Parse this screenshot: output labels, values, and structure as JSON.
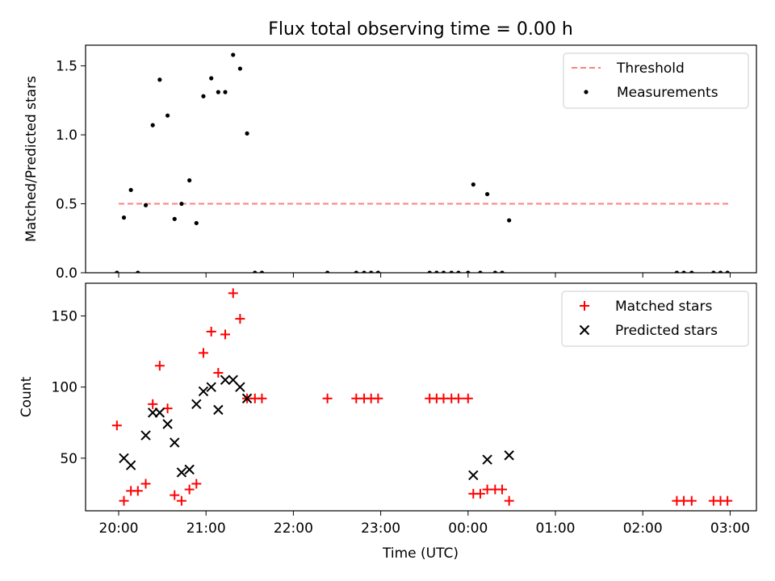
{
  "title": "Flux total observing time = 0.00 h",
  "x_axis": {
    "label": "Time (UTC)",
    "ticks": [
      "20:00",
      "21:00",
      "22:00",
      "23:00",
      "00:00",
      "01:00",
      "02:00",
      "03:00"
    ]
  },
  "colors": {
    "threshold": "#ff7f7f",
    "measurements": "#000000",
    "matched": "#ff0000",
    "predicted": "#000000"
  },
  "chart_data": [
    {
      "type": "scatter",
      "title": "Flux total observing time = 0.00 h",
      "xlabel": "",
      "ylabel": "Matched/Predicted stars",
      "x_unit": "hours after 20:00 UTC",
      "ylim": [
        0,
        1.65
      ],
      "yticks": [
        "0.0",
        "0.5",
        "1.0",
        "1.5"
      ],
      "legend": [
        "Threshold",
        "Measurements"
      ],
      "legend_position": "top-right",
      "threshold": {
        "name": "Threshold",
        "y": 0.5,
        "x": [
          0.0,
          7.0
        ]
      },
      "series": [
        {
          "name": "Measurements",
          "points": [
            [
              -0.02,
              0.0
            ],
            [
              0.06,
              0.4
            ],
            [
              0.14,
              0.6
            ],
            [
              0.22,
              0.0
            ],
            [
              0.31,
              0.49
            ],
            [
              0.39,
              1.07
            ],
            [
              0.47,
              1.4
            ],
            [
              0.56,
              1.14
            ],
            [
              0.64,
              0.39
            ],
            [
              0.72,
              0.5
            ],
            [
              0.81,
              0.67
            ],
            [
              0.89,
              0.36
            ],
            [
              0.97,
              1.28
            ],
            [
              1.06,
              1.41
            ],
            [
              1.14,
              1.31
            ],
            [
              1.22,
              1.31
            ],
            [
              1.31,
              1.58
            ],
            [
              1.39,
              1.48
            ],
            [
              1.47,
              1.01
            ],
            [
              1.56,
              0.0
            ],
            [
              1.64,
              0.0
            ],
            [
              2.39,
              0.0
            ],
            [
              2.72,
              0.0
            ],
            [
              2.81,
              0.0
            ],
            [
              2.89,
              0.0
            ],
            [
              2.97,
              0.0
            ],
            [
              3.56,
              0.0
            ],
            [
              3.64,
              0.0
            ],
            [
              3.72,
              0.0
            ],
            [
              3.81,
              0.0
            ],
            [
              3.89,
              0.0
            ],
            [
              4.0,
              0.0
            ],
            [
              4.06,
              0.64
            ],
            [
              4.14,
              0.0
            ],
            [
              4.22,
              0.57
            ],
            [
              4.31,
              0.0
            ],
            [
              4.39,
              0.0
            ],
            [
              4.47,
              0.38
            ],
            [
              6.39,
              0.0
            ],
            [
              6.47,
              0.0
            ],
            [
              6.56,
              0.0
            ],
            [
              6.81,
              0.0
            ],
            [
              6.89,
              0.0
            ],
            [
              6.97,
              0.0
            ]
          ]
        }
      ]
    },
    {
      "type": "scatter",
      "xlabel": "Time (UTC)",
      "ylabel": "Count",
      "x_unit": "hours after 20:00 UTC",
      "ylim": [
        13,
        173
      ],
      "yticks": [
        "50",
        "100",
        "150"
      ],
      "legend": [
        "Matched stars",
        "Predicted stars"
      ],
      "legend_position": "top-right",
      "series": [
        {
          "name": "Matched stars",
          "marker": "+",
          "points": [
            [
              -0.02,
              73
            ],
            [
              0.06,
              20
            ],
            [
              0.14,
              27
            ],
            [
              0.22,
              27
            ],
            [
              0.31,
              32
            ],
            [
              0.39,
              88
            ],
            [
              0.47,
              115
            ],
            [
              0.56,
              85
            ],
            [
              0.64,
              24
            ],
            [
              0.72,
              20
            ],
            [
              0.81,
              28
            ],
            [
              0.89,
              32
            ],
            [
              0.97,
              124
            ],
            [
              1.06,
              139
            ],
            [
              1.14,
              110
            ],
            [
              1.22,
              137
            ],
            [
              1.31,
              166
            ],
            [
              1.39,
              148
            ],
            [
              1.47,
              92
            ],
            [
              1.56,
              92
            ],
            [
              1.64,
              92
            ],
            [
              2.39,
              92
            ],
            [
              2.72,
              92
            ],
            [
              2.81,
              92
            ],
            [
              2.89,
              92
            ],
            [
              2.97,
              92
            ],
            [
              3.56,
              92
            ],
            [
              3.64,
              92
            ],
            [
              3.72,
              92
            ],
            [
              3.81,
              92
            ],
            [
              3.89,
              92
            ],
            [
              4.0,
              92
            ],
            [
              4.06,
              25
            ],
            [
              4.14,
              25
            ],
            [
              4.22,
              28
            ],
            [
              4.31,
              28
            ],
            [
              4.39,
              28
            ],
            [
              4.47,
              20
            ],
            [
              6.39,
              20
            ],
            [
              6.47,
              20
            ],
            [
              6.56,
              20
            ],
            [
              6.81,
              20
            ],
            [
              6.89,
              20
            ],
            [
              6.97,
              20
            ]
          ]
        },
        {
          "name": "Predicted stars",
          "marker": "x",
          "points": [
            [
              0.06,
              50
            ],
            [
              0.14,
              45
            ],
            [
              0.31,
              66
            ],
            [
              0.39,
              82
            ],
            [
              0.47,
              82
            ],
            [
              0.56,
              74
            ],
            [
              0.64,
              61
            ],
            [
              0.72,
              40
            ],
            [
              0.81,
              42
            ],
            [
              0.89,
              88
            ],
            [
              0.97,
              97
            ],
            [
              1.06,
              100
            ],
            [
              1.14,
              84
            ],
            [
              1.22,
              105
            ],
            [
              1.31,
              105
            ],
            [
              1.39,
              100
            ],
            [
              1.47,
              92
            ],
            [
              4.06,
              38
            ],
            [
              4.22,
              49
            ],
            [
              4.47,
              52
            ]
          ]
        }
      ]
    }
  ]
}
